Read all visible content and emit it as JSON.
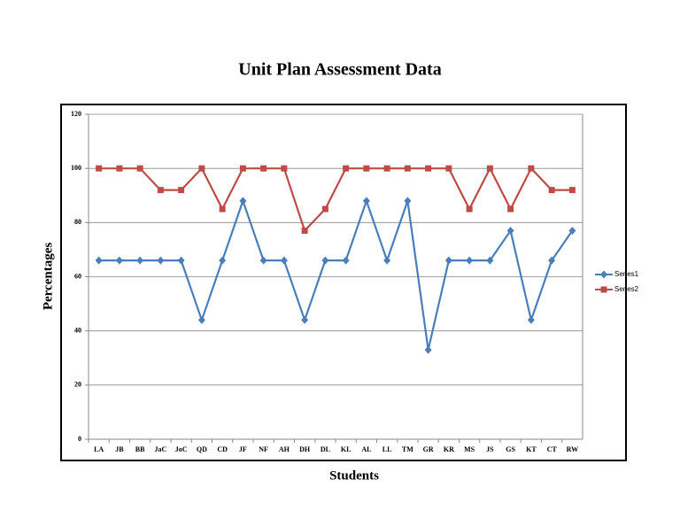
{
  "chart_data": {
    "type": "line",
    "title": "Unit Plan Assessment Data",
    "x_label": "Students",
    "y_label": "Percentages",
    "categories": [
      "LA",
      "JB",
      "BB",
      "JaC",
      "JoC",
      "QD",
      "CD",
      "JF",
      "NF",
      "AH",
      "DH",
      "DL",
      "KL",
      "AL",
      "LL",
      "TM",
      "GR",
      "KR",
      "MS",
      "JS",
      "GS",
      "KT",
      "CT",
      "RW"
    ],
    "series": [
      {
        "name": "Series1",
        "color": "#4a7ebb",
        "marker": "diamond",
        "values": [
          66,
          66,
          66,
          66,
          66,
          44,
          66,
          88,
          66,
          66,
          44,
          66,
          66,
          88,
          66,
          88,
          33,
          66,
          66,
          66,
          77,
          44,
          66,
          77
        ]
      },
      {
        "name": "Series2",
        "color": "#be4b48",
        "marker": "square",
        "values": [
          100,
          100,
          100,
          92,
          92,
          100,
          85,
          100,
          100,
          100,
          77,
          85,
          100,
          100,
          100,
          100,
          100,
          100,
          85,
          100,
          85,
          100,
          92,
          92
        ]
      }
    ],
    "ylim": [
      0,
      120
    ],
    "yticks": [
      0,
      20,
      40,
      60,
      80,
      100,
      120
    ],
    "grid": true,
    "legend": "right"
  }
}
